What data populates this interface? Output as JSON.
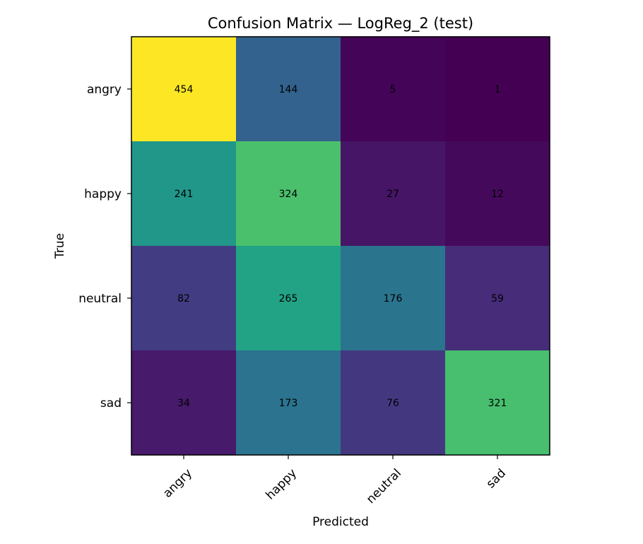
{
  "chart_data": {
    "type": "heatmap",
    "title": "Confusion Matrix — LogReg_2 (test)",
    "xlabel": "Predicted",
    "ylabel": "True",
    "x_categories": [
      "angry",
      "happy",
      "neutral",
      "sad"
    ],
    "y_categories": [
      "angry",
      "happy",
      "neutral",
      "sad"
    ],
    "values": [
      [
        454,
        144,
        5,
        1
      ],
      [
        241,
        324,
        27,
        12
      ],
      [
        82,
        265,
        176,
        59
      ],
      [
        34,
        173,
        76,
        321
      ]
    ],
    "colormap": "viridis",
    "vmin": 1,
    "vmax": 454,
    "grid": false
  }
}
